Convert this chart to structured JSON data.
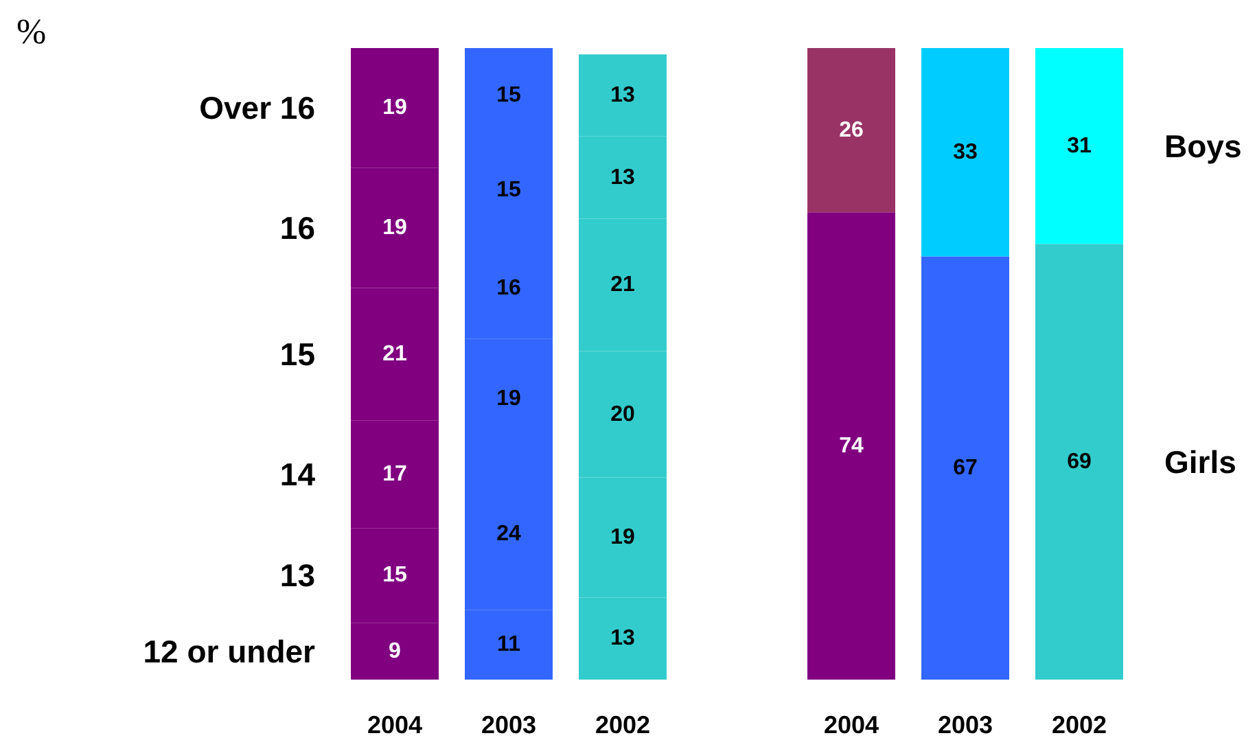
{
  "chart_data": [
    {
      "type": "bar",
      "stacked": true,
      "ylabel": "%",
      "categories": [
        "2004",
        "2003",
        "2002"
      ],
      "ylim": [
        0,
        100
      ],
      "tick_labels": "x",
      "data_labels": true,
      "series": [
        {
          "name": "12 or under",
          "colors": [
            "#800080",
            "#3366ff",
            "#33cccc"
          ],
          "values": [
            9,
            11,
            13
          ]
        },
        {
          "name": "13",
          "colors": [
            "#800080",
            "#3366ff",
            "#33cccc"
          ],
          "values": [
            15,
            24,
            19
          ]
        },
        {
          "name": "14",
          "colors": [
            "#800080",
            "#3366ff",
            "#33cccc"
          ],
          "values": [
            17,
            19,
            20
          ]
        },
        {
          "name": "15",
          "colors": [
            "#800080",
            "#3366ff",
            "#33cccc"
          ],
          "values": [
            21,
            16,
            21
          ]
        },
        {
          "name": "16",
          "colors": [
            "#800080",
            "#3366ff",
            "#33cccc"
          ],
          "values": [
            19,
            15,
            13
          ]
        },
        {
          "name": "Over 16",
          "colors": [
            "#800080",
            "#3366ff",
            "#33cccc"
          ],
          "values": [
            19,
            15,
            13
          ]
        }
      ]
    },
    {
      "type": "bar",
      "stacked": true,
      "categories": [
        "2004",
        "2003",
        "2002"
      ],
      "ylim": [
        0,
        100
      ],
      "tick_labels": "x",
      "data_labels": true,
      "series": [
        {
          "name": "Girls",
          "colors": [
            "#800080",
            "#3366ff",
            "#33cccc"
          ],
          "values": [
            74,
            67,
            69
          ]
        },
        {
          "name": "Boys",
          "colors": [
            "#993366",
            "#00ccff",
            "#00ffff"
          ],
          "values": [
            26,
            33,
            31
          ]
        }
      ]
    }
  ]
}
